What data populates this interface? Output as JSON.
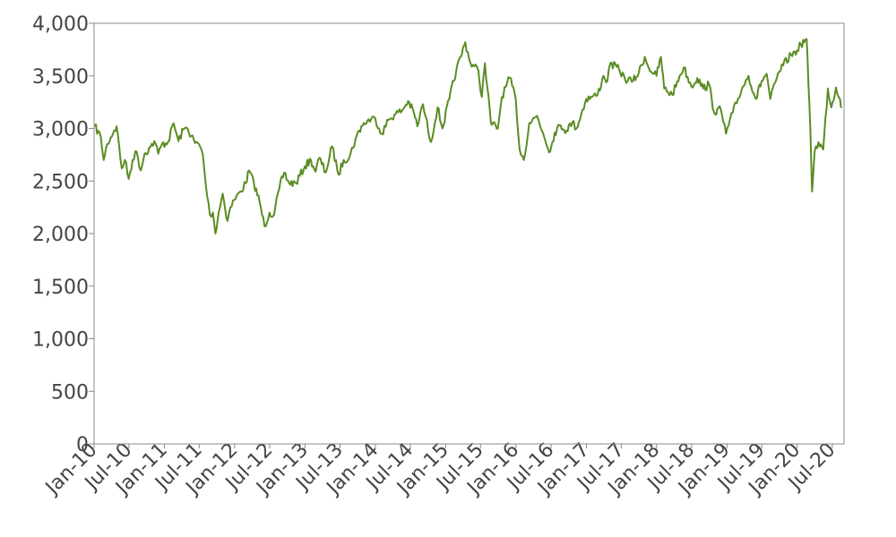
{
  "chart_data": {
    "type": "line",
    "title": "",
    "xlabel": "",
    "ylabel": "",
    "xlim": [
      "2010-01-01",
      "2020-08-31"
    ],
    "ylim": [
      0,
      4000
    ],
    "grid": false,
    "legend": "none",
    "y_ticks": [
      {
        "value": 0,
        "label": "0"
      },
      {
        "value": 500,
        "label": "500"
      },
      {
        "value": 1000,
        "label": "1,000"
      },
      {
        "value": 1500,
        "label": "1,500"
      },
      {
        "value": 2000,
        "label": "2,000"
      },
      {
        "value": 2500,
        "label": "2,500"
      },
      {
        "value": 3000,
        "label": "3,000"
      },
      {
        "value": 3500,
        "label": "3,500"
      },
      {
        "value": 4000,
        "label": "4,000"
      }
    ],
    "x_ticks": [
      {
        "date": "2010-01-01",
        "label": "Jan-10"
      },
      {
        "date": "2010-07-01",
        "label": "Jul-10"
      },
      {
        "date": "2011-01-01",
        "label": "Jan-11"
      },
      {
        "date": "2011-07-01",
        "label": "Jul-11"
      },
      {
        "date": "2012-01-01",
        "label": "Jan-12"
      },
      {
        "date": "2012-07-01",
        "label": "Jul-12"
      },
      {
        "date": "2013-01-01",
        "label": "Jan-13"
      },
      {
        "date": "2013-07-01",
        "label": "Jul-13"
      },
      {
        "date": "2014-01-01",
        "label": "Jan-14"
      },
      {
        "date": "2014-07-01",
        "label": "Jul-14"
      },
      {
        "date": "2015-01-01",
        "label": "Jan-15"
      },
      {
        "date": "2015-07-01",
        "label": "Jul-15"
      },
      {
        "date": "2016-01-01",
        "label": "Jan-16"
      },
      {
        "date": "2016-07-01",
        "label": "Jul-16"
      },
      {
        "date": "2017-01-01",
        "label": "Jan-17"
      },
      {
        "date": "2017-07-01",
        "label": "Jul-17"
      },
      {
        "date": "2018-01-01",
        "label": "Jan-18"
      },
      {
        "date": "2018-07-01",
        "label": "Jul-18"
      },
      {
        "date": "2019-01-01",
        "label": "Jan-19"
      },
      {
        "date": "2019-07-01",
        "label": "Jul-19"
      },
      {
        "date": "2020-01-01",
        "label": "Jan-20"
      },
      {
        "date": "2020-07-01",
        "label": "Jul-20"
      }
    ],
    "series": [
      {
        "color": "#5b8c23",
        "points": [
          [
            "2010-01-04",
            3020
          ],
          [
            "2010-02-05",
            2920
          ],
          [
            "2010-02-20",
            2700
          ],
          [
            "2010-03-10",
            2850
          ],
          [
            "2010-04-15",
            2980
          ],
          [
            "2010-04-28",
            3020
          ],
          [
            "2010-05-25",
            2620
          ],
          [
            "2010-06-10",
            2700
          ],
          [
            "2010-06-30",
            2520
          ],
          [
            "2010-07-20",
            2700
          ],
          [
            "2010-08-10",
            2780
          ],
          [
            "2010-08-31",
            2600
          ],
          [
            "2010-09-20",
            2760
          ],
          [
            "2010-10-20",
            2820
          ],
          [
            "2010-11-10",
            2880
          ],
          [
            "2010-11-30",
            2760
          ],
          [
            "2010-12-20",
            2850
          ],
          [
            "2011-01-20",
            2870
          ],
          [
            "2011-02-18",
            3050
          ],
          [
            "2011-03-15",
            2880
          ],
          [
            "2011-04-10",
            2990
          ],
          [
            "2011-05-01",
            3000
          ],
          [
            "2011-06-10",
            2860
          ],
          [
            "2011-06-30",
            2850
          ],
          [
            "2011-07-20",
            2750
          ],
          [
            "2011-08-05",
            2450
          ],
          [
            "2011-08-25",
            2180
          ],
          [
            "2011-09-10",
            2200
          ],
          [
            "2011-09-23",
            2000
          ],
          [
            "2011-10-10",
            2200
          ],
          [
            "2011-10-31",
            2380
          ],
          [
            "2011-11-25",
            2120
          ],
          [
            "2011-12-10",
            2250
          ],
          [
            "2011-12-30",
            2320
          ],
          [
            "2012-01-31",
            2400
          ],
          [
            "2012-02-28",
            2480
          ],
          [
            "2012-03-16",
            2600
          ],
          [
            "2012-04-10",
            2480
          ],
          [
            "2012-05-10",
            2300
          ],
          [
            "2012-06-04",
            2070
          ],
          [
            "2012-06-30",
            2200
          ],
          [
            "2012-07-24",
            2180
          ],
          [
            "2012-08-20",
            2430
          ],
          [
            "2012-09-14",
            2580
          ],
          [
            "2012-10-10",
            2480
          ],
          [
            "2012-11-15",
            2480
          ],
          [
            "2012-12-31",
            2640
          ],
          [
            "2013-01-31",
            2700
          ],
          [
            "2013-02-25",
            2590
          ],
          [
            "2013-03-15",
            2720
          ],
          [
            "2013-04-18",
            2580
          ],
          [
            "2013-05-21",
            2830
          ],
          [
            "2013-06-24",
            2560
          ],
          [
            "2013-07-20",
            2700
          ],
          [
            "2013-08-20",
            2730
          ],
          [
            "2013-09-20",
            2900
          ],
          [
            "2013-10-20",
            3020
          ],
          [
            "2013-11-20",
            3070
          ],
          [
            "2013-12-31",
            3100
          ],
          [
            "2014-02-03",
            2950
          ],
          [
            "2014-03-10",
            3080
          ],
          [
            "2014-04-10",
            3130
          ],
          [
            "2014-05-20",
            3170
          ],
          [
            "2014-06-20",
            3260
          ],
          [
            "2014-07-20",
            3150
          ],
          [
            "2014-08-07",
            3020
          ],
          [
            "2014-09-05",
            3230
          ],
          [
            "2014-10-16",
            2870
          ],
          [
            "2014-11-20",
            3200
          ],
          [
            "2014-12-15",
            3000
          ],
          [
            "2015-01-20",
            3280
          ],
          [
            "2015-02-25",
            3550
          ],
          [
            "2015-03-20",
            3680
          ],
          [
            "2015-04-13",
            3820
          ],
          [
            "2015-05-10",
            3620
          ],
          [
            "2015-06-20",
            3550
          ],
          [
            "2015-07-08",
            3300
          ],
          [
            "2015-07-24",
            3620
          ],
          [
            "2015-08-24",
            3050
          ],
          [
            "2015-09-29",
            3000
          ],
          [
            "2015-10-20",
            3300
          ],
          [
            "2015-11-30",
            3480
          ],
          [
            "2015-12-31",
            3280
          ],
          [
            "2016-01-20",
            2800
          ],
          [
            "2016-02-11",
            2700
          ],
          [
            "2016-03-10",
            3050
          ],
          [
            "2016-04-20",
            3120
          ],
          [
            "2016-05-20",
            2960
          ],
          [
            "2016-06-27",
            2780
          ],
          [
            "2016-07-20",
            2960
          ],
          [
            "2016-08-20",
            3030
          ],
          [
            "2016-09-20",
            2980
          ],
          [
            "2016-10-20",
            3060
          ],
          [
            "2016-11-10",
            3000
          ],
          [
            "2016-12-31",
            3280
          ],
          [
            "2017-01-31",
            3300
          ],
          [
            "2017-02-28",
            3320
          ],
          [
            "2017-03-31",
            3500
          ],
          [
            "2017-04-20",
            3450
          ],
          [
            "2017-05-05",
            3620
          ],
          [
            "2017-06-20",
            3560
          ],
          [
            "2017-07-20",
            3470
          ],
          [
            "2017-08-31",
            3450
          ],
          [
            "2017-09-30",
            3530
          ],
          [
            "2017-10-31",
            3680
          ],
          [
            "2017-11-20",
            3580
          ],
          [
            "2017-12-31",
            3500
          ],
          [
            "2018-01-23",
            3680
          ],
          [
            "2018-02-09",
            3380
          ],
          [
            "2018-03-23",
            3320
          ],
          [
            "2018-04-30",
            3500
          ],
          [
            "2018-05-22",
            3580
          ],
          [
            "2018-06-30",
            3400
          ],
          [
            "2018-07-31",
            3480
          ],
          [
            "2018-08-31",
            3380
          ],
          [
            "2018-09-30",
            3420
          ],
          [
            "2018-10-25",
            3160
          ],
          [
            "2018-11-30",
            3180
          ],
          [
            "2018-12-27",
            2950
          ],
          [
            "2019-01-31",
            3150
          ],
          [
            "2019-03-20",
            3380
          ],
          [
            "2019-04-23",
            3500
          ],
          [
            "2019-05-31",
            3280
          ],
          [
            "2019-06-30",
            3450
          ],
          [
            "2019-07-26",
            3520
          ],
          [
            "2019-08-14",
            3280
          ],
          [
            "2019-09-30",
            3540
          ],
          [
            "2019-10-20",
            3600
          ],
          [
            "2019-11-30",
            3700
          ],
          [
            "2019-12-31",
            3740
          ],
          [
            "2020-01-20",
            3800
          ],
          [
            "2020-02-19",
            3850
          ],
          [
            "2020-02-28",
            3420
          ],
          [
            "2020-03-09",
            3000
          ],
          [
            "2020-03-18",
            2400
          ],
          [
            "2020-03-31",
            2780
          ],
          [
            "2020-04-20",
            2870
          ],
          [
            "2020-05-15",
            2800
          ],
          [
            "2020-06-08",
            3380
          ],
          [
            "2020-06-26",
            3200
          ],
          [
            "2020-07-20",
            3390
          ],
          [
            "2020-08-10",
            3280
          ],
          [
            "2020-08-20",
            3200
          ]
        ]
      }
    ]
  }
}
